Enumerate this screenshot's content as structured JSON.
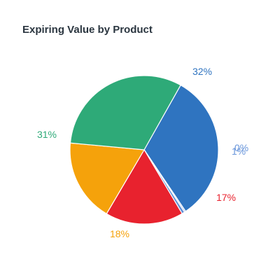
{
  "chart_data": {
    "type": "pie",
    "title": "Expiring Value by Product",
    "slices": [
      {
        "label": "32%",
        "value": 32.4,
        "color": "#2f74c0"
      },
      {
        "label": "0%",
        "value": 0.3,
        "color": "#9fb8e6"
      },
      {
        "label": "1%",
        "value": 0.6,
        "color": "#5f8fd6"
      },
      {
        "label": "17%",
        "value": 17.0,
        "color": "#e8222e"
      },
      {
        "label": "18%",
        "value": 18.0,
        "color": "#f5a20b"
      },
      {
        "label": "31%",
        "value": 31.7,
        "color": "#2eaa78"
      }
    ],
    "label_colors": [
      "#2f74c0",
      "#5f8fd6",
      "#9fb8e6",
      "#e8222e",
      "#f5a20b",
      "#2eaa78"
    ]
  }
}
